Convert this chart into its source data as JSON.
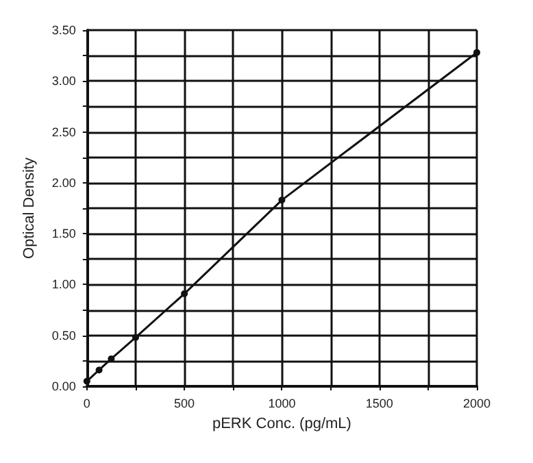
{
  "chart_data": {
    "type": "line",
    "xlabel": "pERK Conc. (pg/mL)",
    "ylabel": "Optical Density",
    "x": [
      0,
      62.5,
      125,
      250,
      500,
      1000,
      2000
    ],
    "series": [
      {
        "color": "#111111",
        "values": [
          0.05,
          0.16,
          0.27,
          0.48,
          0.91,
          1.83,
          3.28
        ]
      }
    ],
    "xlim": [
      0,
      2000
    ],
    "xticks": [
      0,
      {
        "value": 250,
        "label": null
      },
      500,
      {
        "value": 750,
        "label": null
      },
      1000,
      {
        "value": 1250,
        "label": null
      },
      1500,
      {
        "value": 1750,
        "label": null
      },
      2000
    ],
    "ylim": [
      0,
      3.5
    ],
    "yticks": [
      {
        "value": 0,
        "label": "0.00"
      },
      {
        "value": 0.25,
        "label": null
      },
      {
        "value": 0.5,
        "label": "0.50"
      },
      {
        "value": 0.75,
        "label": null
      },
      {
        "value": 1,
        "label": "1.00"
      },
      {
        "value": 1.25,
        "label": null
      },
      {
        "value": 1.5,
        "label": "1.50"
      },
      {
        "value": 1.75,
        "label": null
      },
      {
        "value": 2,
        "label": "2.00"
      },
      {
        "value": 2.25,
        "label": null
      },
      {
        "value": 2.5,
        "label": "2.50"
      },
      {
        "value": 2.75,
        "label": null
      },
      {
        "value": 3,
        "label": "3.00"
      },
      {
        "value": 3.25,
        "label": null
      },
      {
        "value": 3.5,
        "label": "3.50"
      }
    ],
    "grid": true,
    "marker": "circle",
    "line_style": "solid"
  }
}
